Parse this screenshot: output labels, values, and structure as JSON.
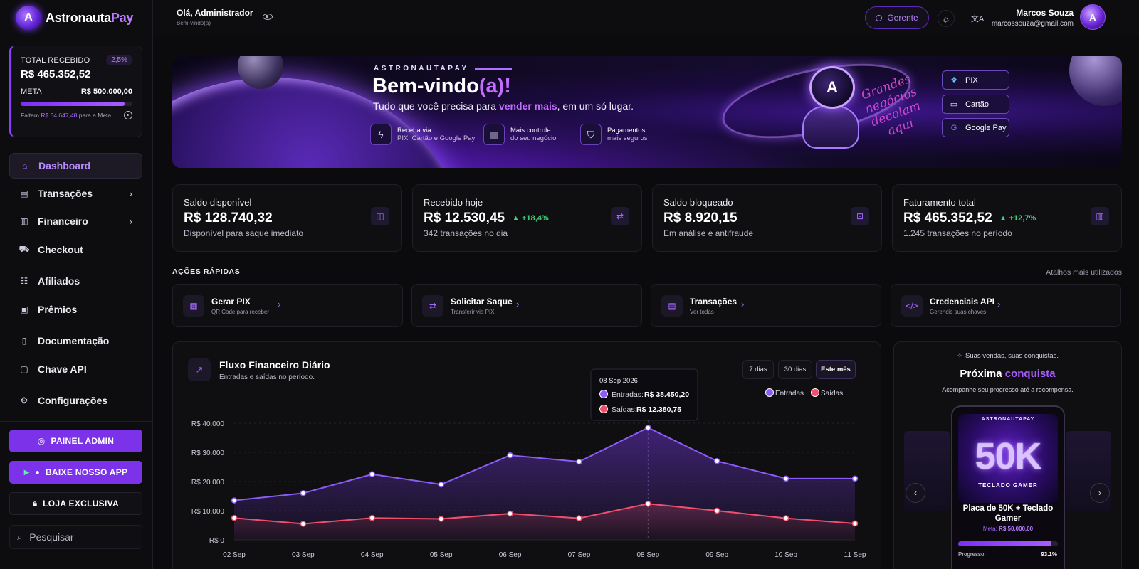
{
  "brand": {
    "name_a": "Astronauta",
    "name_b": "Pay",
    "logo_letter": "A"
  },
  "goal": {
    "label": "TOTAL RECEBIDO",
    "pct": "2,5%",
    "value": "R$ 465.352,52",
    "meta_label": "META",
    "meta_value": "R$ 500.000,00",
    "progress": 0.931,
    "foot_a": "Faltam",
    "foot_amount": "R$ 34.647,48",
    "foot_b": "para a Meta"
  },
  "sidebar": {
    "items": [
      {
        "label": "Dashboard",
        "icon": "home-icon",
        "glyph": "⌂",
        "chevron": false,
        "active": true
      },
      {
        "label": "Transações",
        "icon": "receipt-icon",
        "glyph": "▤",
        "chevron": true,
        "active": false
      },
      {
        "label": "Financeiro",
        "icon": "bank-icon",
        "glyph": "▥",
        "chevron": true,
        "active": false
      },
      {
        "label": "Checkout",
        "icon": "cart-icon",
        "glyph": "⛟",
        "chevron": false,
        "active": false
      },
      {
        "label": "Afiliados",
        "icon": "users-icon",
        "glyph": "☷",
        "chevron": false,
        "active": false
      },
      {
        "label": "Prêmios",
        "icon": "gift-icon",
        "glyph": "▣",
        "chevron": false,
        "active": false
      },
      {
        "label": "Documentação",
        "icon": "document-icon",
        "glyph": "▯",
        "chevron": false,
        "active": false
      },
      {
        "label": "Chave API",
        "icon": "key-icon",
        "glyph": "▢",
        "chevron": false,
        "active": false
      },
      {
        "label": "Configurações",
        "icon": "gear-icon",
        "glyph": "⚙",
        "chevron": false,
        "active": false
      }
    ],
    "btn_admin": "PAINEL ADMIN",
    "btn_app": "BAIXE NOSSO APP",
    "btn_store": "LOJA EXCLUSIVA",
    "search_placeholder": "Pesquisar"
  },
  "topbar": {
    "greeting": "Olá, Administrador",
    "greeting_sub": "Bem-vindo(a)",
    "role": "Gerente",
    "user_name": "Marcos Souza",
    "user_email": "marcossouza@gmail.com"
  },
  "banner": {
    "brand": "ASTRONAUTAPAY",
    "title_a": "Bem-vindo",
    "title_b": "(a)!",
    "sub_a": "Tudo que você precisa para",
    "sub_b": "vender mais",
    "sub_c": ", em um só lugar.",
    "script": "Grandes negócios decolam aqui",
    "features": [
      {
        "line1": "Receba via",
        "line2": "PIX, Cartão e Google Pay",
        "icon": "lightning-icon",
        "glyph": "ϟ"
      },
      {
        "line1": "Mais controle",
        "line2": "do seu negócio",
        "icon": "bar-chart-icon",
        "glyph": "▥"
      },
      {
        "line1": "Pagamentos",
        "line2": "mais seguros",
        "icon": "shield-icon",
        "glyph": "⛉"
      }
    ],
    "pay_methods": [
      {
        "label": "PIX",
        "icon": "pix-icon",
        "glyph": "❖",
        "color": "#5fd0ff"
      },
      {
        "label": "Cartão",
        "icon": "card-icon",
        "glyph": "▭",
        "color": "#e9e1ff"
      },
      {
        "label": "Google Pay",
        "icon": "google-icon",
        "glyph": "G",
        "color": "#4f8ef7"
      }
    ]
  },
  "stats": [
    {
      "label": "Saldo disponível",
      "value": "R$ 128.740,32",
      "delta": "",
      "foot": "Disponível para saque imediato",
      "icon": "wallet-icon",
      "glyph": "◫"
    },
    {
      "label": "Recebido hoje",
      "value": "R$ 12.530,45",
      "delta": "▲ +18,4%",
      "foot": "342 transações no dia",
      "icon": "transfer-icon",
      "glyph": "⇄"
    },
    {
      "label": "Saldo bloqueado",
      "value": "R$ 8.920,15",
      "delta": "",
      "foot": "Em análise e antifraude",
      "icon": "lock-icon",
      "glyph": "⊡"
    },
    {
      "label": "Faturamento total",
      "value": "R$ 465.352,52",
      "delta": "▲ +12,7%",
      "foot": "1.245 transações no período",
      "icon": "chart-icon",
      "glyph": "▥"
    }
  ],
  "quick_actions": {
    "title": "AÇÕES RÁPIDAS",
    "right_label": "Atalhos mais utilizados",
    "items": [
      {
        "name": "Gerar PIX",
        "sub": "QR Code para receber",
        "icon": "qr-code-icon",
        "glyph": "▦"
      },
      {
        "name": "Solicitar Saque",
        "sub": "Transferir via PIX",
        "icon": "transfer-icon",
        "glyph": "⇄"
      },
      {
        "name": "Transações",
        "sub": "Ver todas",
        "icon": "document-icon",
        "glyph": "▤"
      },
      {
        "name": "Credenciais API",
        "sub": "Gerencie suas chaves",
        "icon": "code-icon",
        "glyph": "</>"
      }
    ]
  },
  "chart": {
    "title": "Fluxo Financeiro Diário",
    "subtitle": "Entradas e saídas no período.",
    "ranges": [
      "7 dias",
      "30 dias",
      "Este mês"
    ],
    "active_range": 2,
    "tooltip": {
      "date": "08 Sep 2026",
      "in_label": "Entradas:",
      "in_value": "R$ 38.450,20",
      "out_label": "Saídas:",
      "out_value": "R$ 12.380,75"
    }
  },
  "chart_data": {
    "type": "area",
    "x": [
      "02 Sep",
      "03 Sep",
      "04 Sep",
      "05 Sep",
      "06 Sep",
      "07 Sep",
      "08 Sep",
      "09 Sep",
      "10 Sep",
      "11 Sep"
    ],
    "ylim": [
      0,
      40000
    ],
    "yticks": [
      0,
      10000,
      20000,
      30000,
      40000
    ],
    "ytick_labels": [
      "R$ 0",
      "R$ 10.000",
      "R$ 20.000",
      "R$ 30.000",
      "R$ 40.000"
    ],
    "grid": true,
    "legend": "top-right",
    "series": [
      {
        "name": "Entradas",
        "color": "#8b5cf6",
        "values": [
          13500,
          16000,
          22500,
          19000,
          29000,
          26800,
          38450,
          27000,
          21000,
          21000
        ]
      },
      {
        "name": "Saídas",
        "color": "#f0506e",
        "values": [
          7500,
          5500,
          7500,
          7200,
          9000,
          7400,
          12380,
          10000,
          7400,
          5600
        ]
      }
    ]
  },
  "reward": {
    "top": "Suas vendas, suas conquistas.",
    "title_a": "Próxima",
    "title_b": "conquista",
    "subtitle": "Acompanhe seu progresso até a recompensa.",
    "plaque_brand": "ASTRONAUTAPAY",
    "plaque_big": "50K",
    "plaque_kb": "TECLADO GAMER",
    "name": "Placa de 50K + Teclado Gamer",
    "meta_label": "Meta:",
    "meta_value": "R$ 50.000,00",
    "progress_label": "Progresso",
    "progress_value": "93.1%",
    "progress": 0.931
  }
}
